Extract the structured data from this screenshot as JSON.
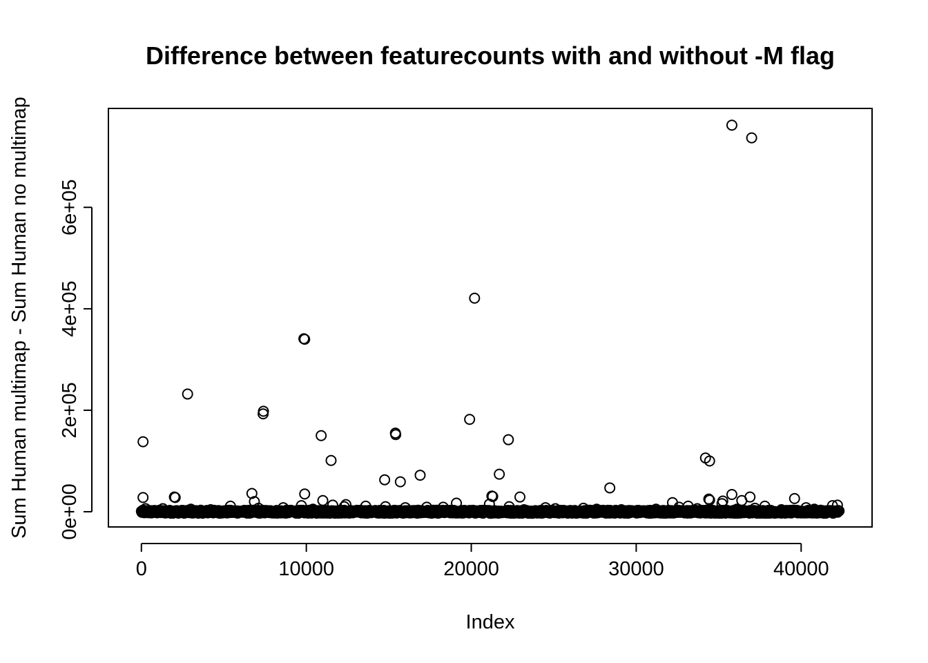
{
  "chart_data": {
    "type": "scatter",
    "title": "Difference between featurecounts with and without -M flag",
    "xlabel": "Index",
    "ylabel": "Sum Human multimap - Sum Human no multimap",
    "xlim": [
      -2000,
      44300
    ],
    "ylim": [
      -30000,
      795000
    ],
    "x_ticks": [
      0,
      10000,
      20000,
      30000,
      40000
    ],
    "x_tick_labels": [
      "0",
      "10000",
      "20000",
      "30000",
      "40000"
    ],
    "y_ticks": [
      0,
      200000,
      400000,
      600000
    ],
    "y_tick_labels": [
      "0e+00",
      "2e+05",
      "4e+05",
      "6e+05"
    ],
    "grid": false,
    "legend": "none",
    "marker": "open-circle",
    "baseline_band": {
      "x_range": [
        0,
        42300
      ],
      "y_range": [
        -3000,
        3000
      ],
      "description_count": 42300
    },
    "points": [
      {
        "x": 35800,
        "y": 762000
      },
      {
        "x": 37000,
        "y": 737000
      },
      {
        "x": 20200,
        "y": 421000
      },
      {
        "x": 9850,
        "y": 341000
      },
      {
        "x": 9900,
        "y": 340000
      },
      {
        "x": 2800,
        "y": 232000
      },
      {
        "x": 7400,
        "y": 198000
      },
      {
        "x": 7380,
        "y": 193000
      },
      {
        "x": 19900,
        "y": 182000
      },
      {
        "x": 15400,
        "y": 155000
      },
      {
        "x": 15420,
        "y": 152000
      },
      {
        "x": 10900,
        "y": 150000
      },
      {
        "x": 22250,
        "y": 142000
      },
      {
        "x": 100,
        "y": 138000
      },
      {
        "x": 34200,
        "y": 106000
      },
      {
        "x": 34450,
        "y": 100000
      },
      {
        "x": 11500,
        "y": 101000
      },
      {
        "x": 21700,
        "y": 74000
      },
      {
        "x": 16900,
        "y": 72000
      },
      {
        "x": 14750,
        "y": 63000
      },
      {
        "x": 15700,
        "y": 59000
      },
      {
        "x": 28400,
        "y": 47000
      },
      {
        "x": 6700,
        "y": 36000
      },
      {
        "x": 9900,
        "y": 35000
      },
      {
        "x": 35800,
        "y": 34000
      },
      {
        "x": 21250,
        "y": 31000
      },
      {
        "x": 21300,
        "y": 30000
      },
      {
        "x": 2000,
        "y": 29000
      },
      {
        "x": 2050,
        "y": 28000
      },
      {
        "x": 22950,
        "y": 29000
      },
      {
        "x": 36900,
        "y": 29000
      },
      {
        "x": 100,
        "y": 28000
      },
      {
        "x": 39600,
        "y": 26000
      },
      {
        "x": 34400,
        "y": 25000
      },
      {
        "x": 34450,
        "y": 23000
      },
      {
        "x": 11000,
        "y": 22000
      },
      {
        "x": 36400,
        "y": 22000
      },
      {
        "x": 35250,
        "y": 21000
      },
      {
        "x": 6850,
        "y": 20000
      },
      {
        "x": 32200,
        "y": 18000
      },
      {
        "x": 19100,
        "y": 17000
      },
      {
        "x": 35200,
        "y": 16000
      },
      {
        "x": 21100,
        "y": 15000
      },
      {
        "x": 12400,
        "y": 14000
      },
      {
        "x": 42200,
        "y": 13000
      },
      {
        "x": 11600,
        "y": 13000
      },
      {
        "x": 9700,
        "y": 12000
      },
      {
        "x": 41900,
        "y": 12000
      },
      {
        "x": 5400,
        "y": 11000
      },
      {
        "x": 13600,
        "y": 11000
      },
      {
        "x": 33150,
        "y": 11000
      },
      {
        "x": 37800,
        "y": 11000
      },
      {
        "x": 12300,
        "y": 10000
      },
      {
        "x": 22300,
        "y": 10000
      },
      {
        "x": 14800,
        "y": 10000
      },
      {
        "x": 17300,
        "y": 9000
      },
      {
        "x": 18300,
        "y": 9000
      },
      {
        "x": 32600,
        "y": 9000
      },
      {
        "x": 8600,
        "y": 8000
      },
      {
        "x": 16000,
        "y": 8000
      },
      {
        "x": 24500,
        "y": 8000
      },
      {
        "x": 40300,
        "y": 8000
      },
      {
        "x": 7100,
        "y": 7000
      },
      {
        "x": 26800,
        "y": 7000
      },
      {
        "x": 37200,
        "y": 7000
      },
      {
        "x": 250,
        "y": 6000
      },
      {
        "x": 1300,
        "y": 6000
      },
      {
        "x": 25100,
        "y": 6000
      },
      {
        "x": 33700,
        "y": 6000
      },
      {
        "x": 40800,
        "y": 5000
      },
      {
        "x": 3000,
        "y": 5000
      },
      {
        "x": 10400,
        "y": 5000
      },
      {
        "x": 27600,
        "y": 5000
      },
      {
        "x": 31200,
        "y": 5000
      },
      {
        "x": 36100,
        "y": 5000
      },
      {
        "x": 4200,
        "y": 4000
      },
      {
        "x": 23200,
        "y": 4000
      },
      {
        "x": 29100,
        "y": 4000
      },
      {
        "x": 38800,
        "y": 4000
      }
    ]
  }
}
